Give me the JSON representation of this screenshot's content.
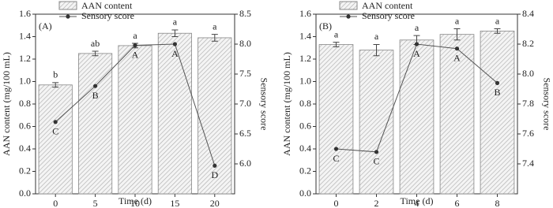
{
  "chart_data": [
    {
      "type": "bar-line",
      "panel_label": "(A)",
      "categories": [
        "0",
        "5",
        "10",
        "15",
        "20"
      ],
      "x_label": "Time (d)",
      "y_label": "AAN content (mg/100 mL)",
      "y2_label": "Sensory score",
      "ylim": [
        0,
        1.6
      ],
      "yticks": [
        {
          "value": 0,
          "label": "0.0"
        },
        0.2,
        0.4,
        0.6,
        0.8,
        {
          "value": 1,
          "label": "1.0"
        },
        1.2,
        1.4,
        1.6
      ],
      "y2lim": [
        5.5,
        8.5
      ],
      "y2ticks": [
        {
          "value": 6,
          "label": "6.0"
        },
        6.5,
        {
          "value": 7,
          "label": "7.0"
        },
        7.5,
        {
          "value": 8,
          "label": "8.0"
        },
        8.5
      ],
      "series": [
        {
          "name": "AAN content",
          "color": "#888888",
          "values": [
            0.97,
            1.25,
            1.32,
            1.43,
            1.39
          ],
          "errors": [
            0.02,
            0.02,
            0.02,
            0.03,
            0.03
          ],
          "labels": [
            "b",
            "ab",
            "a",
            "a",
            "a"
          ]
        },
        {
          "name": "Sensory score",
          "color": "#555555",
          "axis": "y2",
          "values": [
            6.7,
            7.3,
            7.98,
            8.0,
            5.97
          ],
          "labels": [
            "C",
            "B",
            "A",
            "A",
            "D"
          ]
        }
      ]
    },
    {
      "type": "bar-line",
      "panel_label": "(B)",
      "categories": [
        "0",
        "2",
        "4",
        "6",
        "8"
      ],
      "x_label": "Time (d)",
      "y_label": "AAN content (mg/100 mL)",
      "y2_label": "Sensory score",
      "ylim": [
        0,
        1.6
      ],
      "yticks": [
        {
          "value": 0,
          "label": "0.0"
        },
        0.2,
        0.4,
        0.6,
        0.8,
        {
          "value": 1,
          "label": "1.0"
        },
        1.2,
        1.4,
        1.6
      ],
      "y2lim": [
        7.2,
        8.4
      ],
      "y2ticks": [
        7.4,
        7.6,
        7.8,
        {
          "value": 8,
          "label": "8.0"
        },
        8.2,
        8.4
      ],
      "series": [
        {
          "name": "AAN content",
          "color": "#888888",
          "values": [
            1.33,
            1.28,
            1.37,
            1.42,
            1.45
          ],
          "errors": [
            0.02,
            0.05,
            0.04,
            0.05,
            0.02
          ],
          "labels": [
            "a",
            "a",
            "a",
            "a",
            "a"
          ]
        },
        {
          "name": "Sensory score",
          "color": "#555555",
          "axis": "y2",
          "values": [
            7.5,
            7.48,
            8.2,
            8.17,
            7.94
          ],
          "labels": [
            "C",
            "C",
            "A",
            "A",
            "B"
          ]
        }
      ]
    }
  ]
}
